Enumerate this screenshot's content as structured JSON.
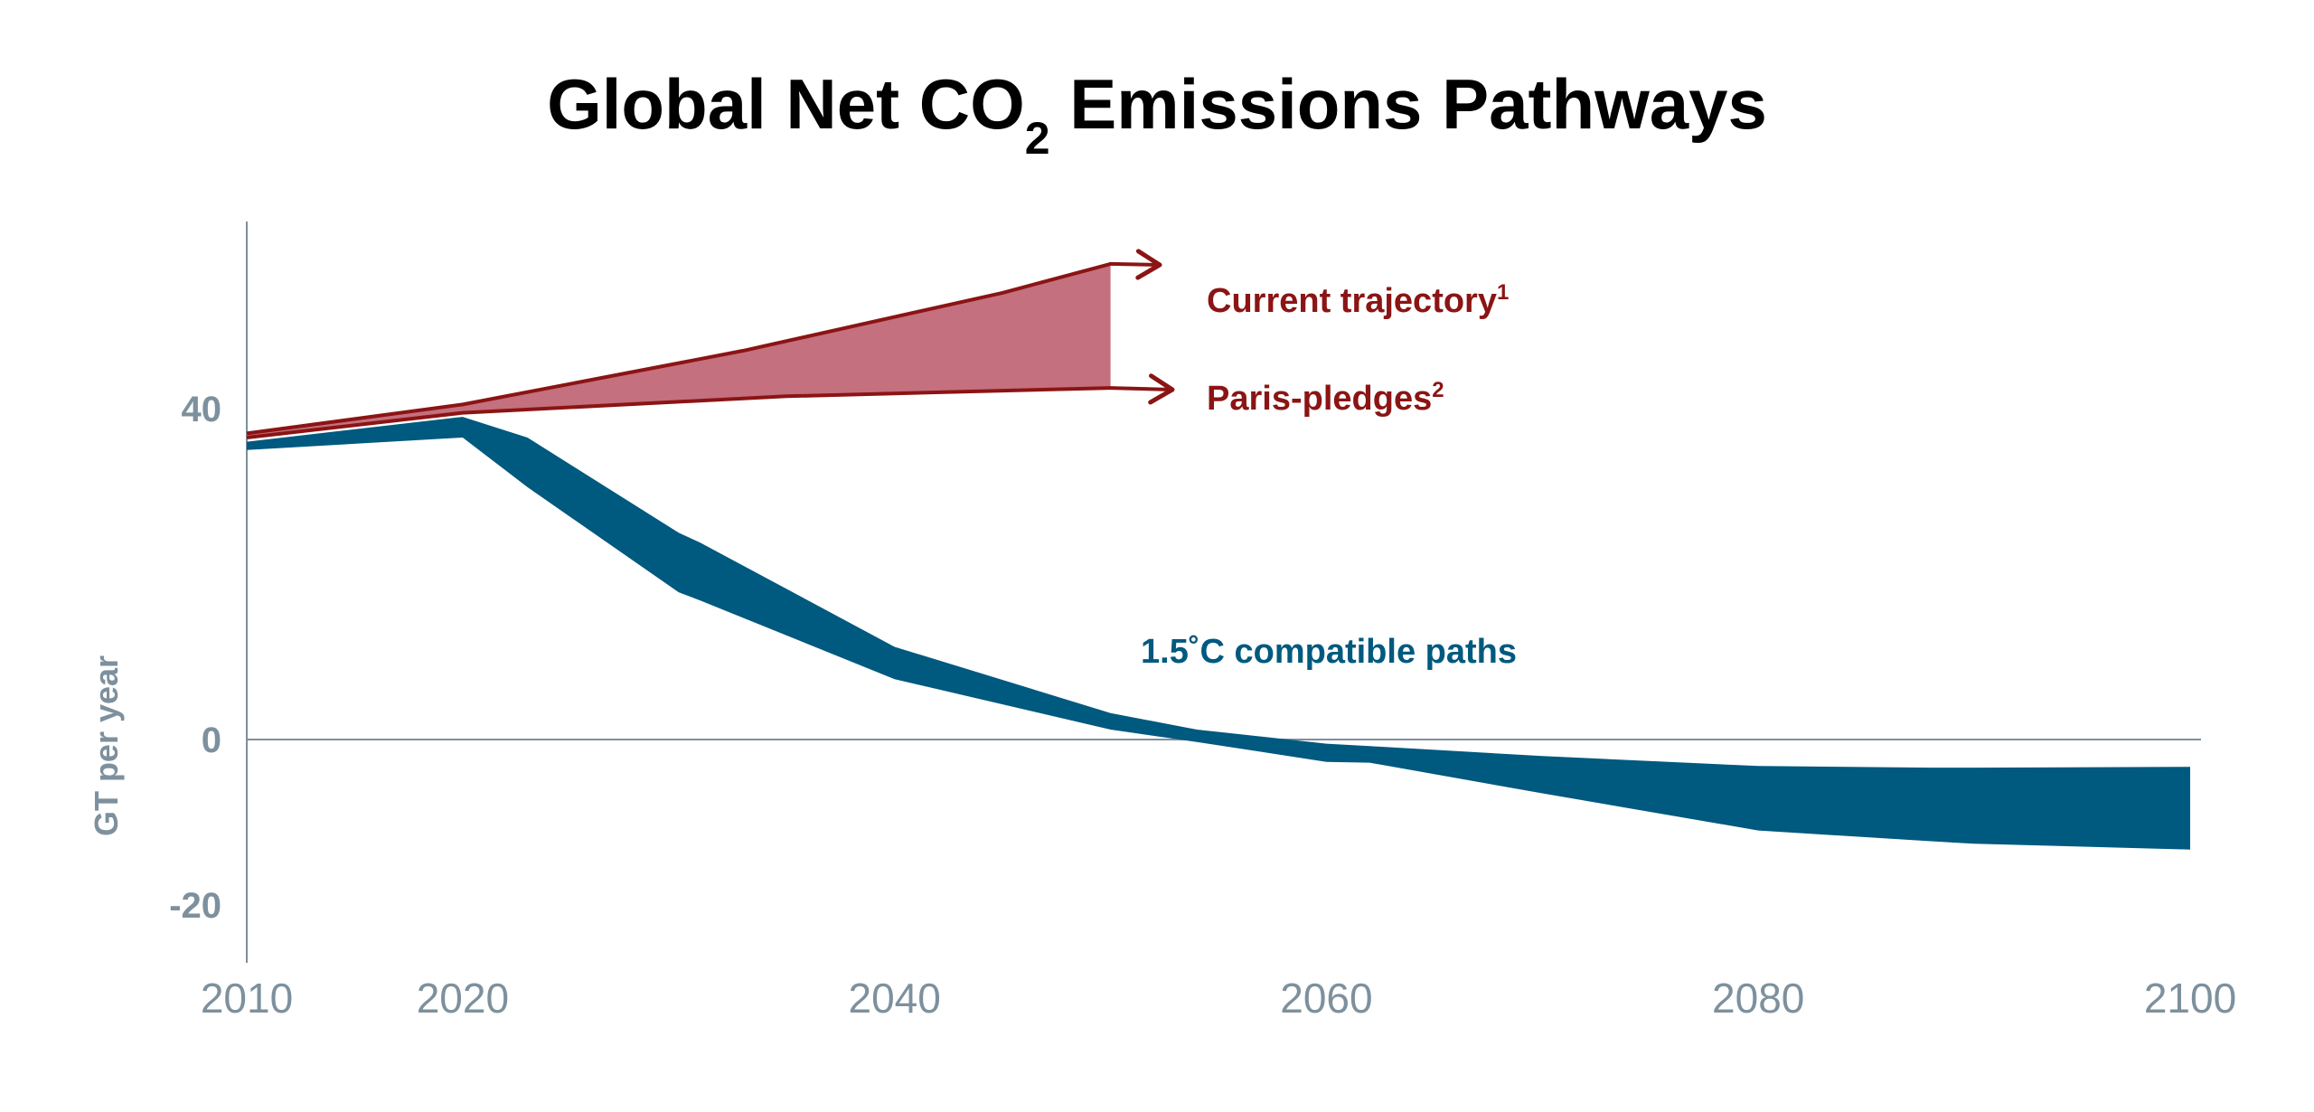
{
  "chart_data": {
    "type": "area",
    "title": "Global Net CO",
    "title_subscript": "2",
    "title_suffix": " Emissions Pathways",
    "ylabel": "GT per year",
    "xlabel": "",
    "xlim": [
      2010,
      2100
    ],
    "ylim": [
      -24,
      57
    ],
    "x_ticks": [
      "2010",
      "2020",
      "2040",
      "2060",
      "2080",
      "2100"
    ],
    "y_ticks": [
      "40",
      "0",
      "-20"
    ],
    "grid": false,
    "colors": {
      "red": "#8b1414",
      "red_fill": "#c4707e",
      "blue": "#00597f",
      "axis": "#7d909d"
    },
    "series": [
      {
        "name": "Current trajectory",
        "superscript": "1",
        "x": [
          2010,
          2020,
          2033,
          2045,
          2050
        ],
        "y": [
          37,
          40.5,
          47,
          54,
          57.5
        ]
      },
      {
        "name": "Paris-pledges",
        "superscript": "2",
        "x": [
          2010,
          2020,
          2035,
          2050
        ],
        "y": [
          36.5,
          39.5,
          41.5,
          42.5
        ]
      },
      {
        "name": "1.5˚C compatible paths",
        "x": [
          2010,
          2020,
          2023,
          2030,
          2031,
          2040,
          2050,
          2054,
          2060,
          2062,
          2070,
          2080,
          2088,
          2090,
          2100
        ],
        "upper": [
          36,
          39,
          36.5,
          25,
          23.8,
          11.2,
          3.2,
          1.2,
          -0.5,
          -0.8,
          -2,
          -3.2,
          -3.4,
          -3.4,
          -3.3
        ],
        "lower": [
          35,
          36.5,
          30.5,
          17.8,
          16.8,
          7.3,
          1.2,
          -0.3,
          -2.7,
          -2.8,
          -6.5,
          -11,
          -12.3,
          -12.6,
          -13.3
        ]
      }
    ]
  }
}
